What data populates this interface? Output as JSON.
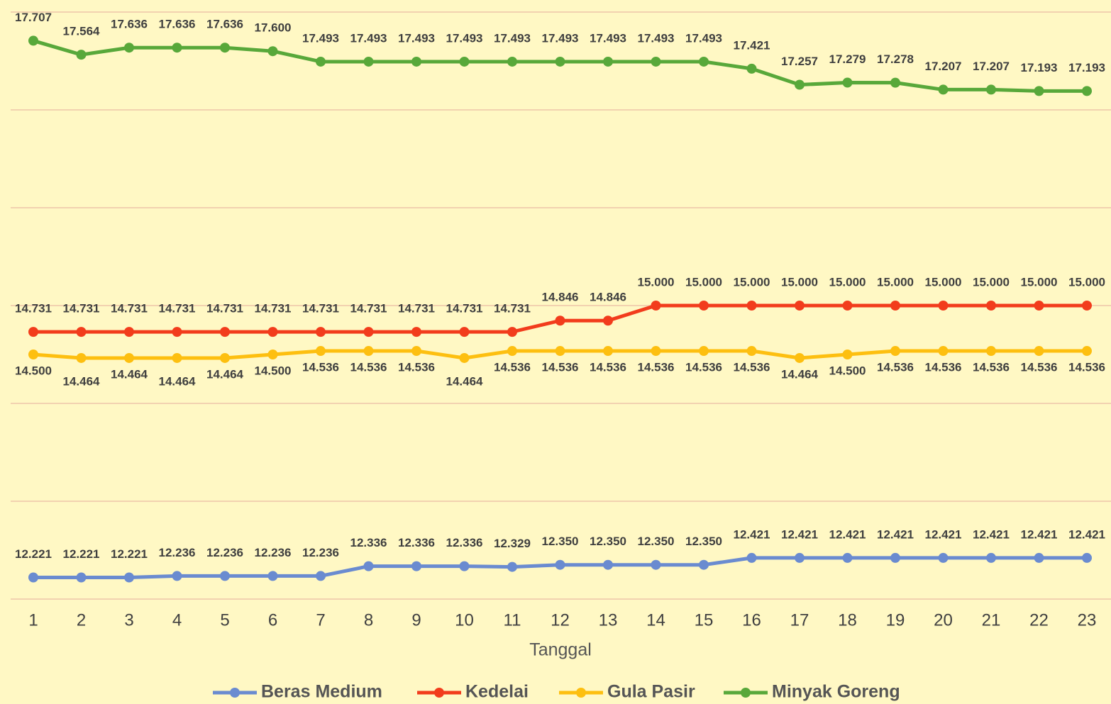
{
  "chart_data": {
    "type": "line",
    "x_label": "Tanggal",
    "categories": [
      "1",
      "2",
      "3",
      "4",
      "5",
      "6",
      "7",
      "8",
      "9",
      "10",
      "11",
      "12",
      "13",
      "14",
      "15",
      "16",
      "17",
      "18",
      "19",
      "20",
      "21",
      "22",
      "23"
    ],
    "ylim": [
      12000,
      18000
    ],
    "yticks": [
      12000,
      13000,
      14000,
      15000,
      16000,
      17000,
      18000
    ],
    "grid": true,
    "legend": "bottom",
    "series": [
      {
        "name": "Beras Medium",
        "color": "#6a8bd0",
        "values": [
          12221,
          12221,
          12221,
          12236,
          12236,
          12236,
          12236,
          12336,
          12336,
          12336,
          12329,
          12350,
          12350,
          12350,
          12350,
          12421,
          12421,
          12421,
          12421,
          12421,
          12421,
          12421,
          12421
        ],
        "value_labels": [
          "12.221",
          "12.221",
          "12.221",
          "12.236",
          "12.236",
          "12.236",
          "12.236",
          "12.336",
          "12.336",
          "12.336",
          "12.329",
          "12.350",
          "12.350",
          "12.350",
          "12.350",
          "12.421",
          "12.421",
          "12.421",
          "12.421",
          "12.421",
          "12.421",
          "12.421",
          "12.421"
        ]
      },
      {
        "name": "Kedelai",
        "color": "#f23c1c",
        "values": [
          14731,
          14731,
          14731,
          14731,
          14731,
          14731,
          14731,
          14731,
          14731,
          14731,
          14731,
          14846,
          14846,
          15000,
          15000,
          15000,
          15000,
          15000,
          15000,
          15000,
          15000,
          15000,
          15000
        ],
        "value_labels": [
          "14.731",
          "14.731",
          "14.731",
          "14.731",
          "14.731",
          "14.731",
          "14.731",
          "14.731",
          "14.731",
          "14.731",
          "14.731",
          "14.846",
          "14.846",
          "15.000",
          "15.000",
          "15.000",
          "15.000",
          "15.000",
          "15.000",
          "15.000",
          "15.000",
          "15.000",
          "15.000"
        ]
      },
      {
        "name": "Gula Pasir",
        "color": "#fdbf10",
        "values": [
          14500,
          14464,
          14464,
          14464,
          14464,
          14500,
          14536,
          14536,
          14536,
          14464,
          14536,
          14536,
          14536,
          14536,
          14536,
          14536,
          14464,
          14500,
          14536,
          14536,
          14536,
          14536,
          14536
        ],
        "value_labels": [
          "14.500",
          "14.464",
          "14.464",
          "14.464",
          "14.464",
          "14.500",
          "14.536",
          "14.536",
          "14.536",
          "14.464",
          "14.536",
          "14.536",
          "14.536",
          "14.536",
          "14.536",
          "14.536",
          "14.464",
          "14.500",
          "14.536",
          "14.536",
          "14.536",
          "14.536",
          "14.536"
        ]
      },
      {
        "name": "Minyak Goreng",
        "color": "#58a83a",
        "values": [
          17707,
          17564,
          17636,
          17636,
          17636,
          17600,
          17493,
          17493,
          17493,
          17493,
          17493,
          17493,
          17493,
          17493,
          17493,
          17421,
          17257,
          17279,
          17278,
          17207,
          17207,
          17193,
          17193
        ],
        "value_labels": [
          "17.707",
          "17.564",
          "17.636",
          "17.636",
          "17.636",
          "17.600",
          "17.493",
          "17.493",
          "17.493",
          "17.493",
          "17.493",
          "17.493",
          "17.493",
          "17.493",
          "17.493",
          "17.421",
          "17.257",
          "17.279",
          "17.278",
          "17.207",
          "17.207",
          "17.193",
          "17.193"
        ]
      }
    ]
  }
}
